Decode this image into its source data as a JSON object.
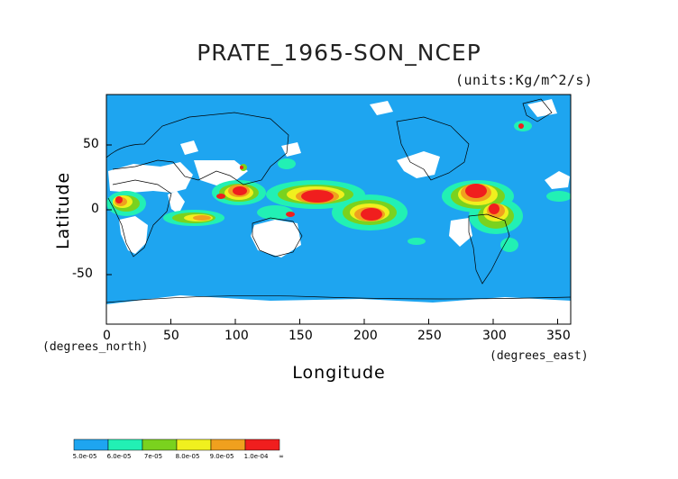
{
  "title": "PRATE_1965-SON_NCEP",
  "units": "(units:Kg/m^2/s)",
  "ylabel": "Latitude",
  "xlabel": "Longitude",
  "y_unit_note": "(degrees_north)",
  "x_unit_note": "(degrees_east)",
  "chart_data": {
    "type": "heatmap",
    "title": "PRATE_1965-SON_NCEP",
    "units": "(units:Kg/m^2/s)",
    "xlabel": "Longitude",
    "ylabel": "Latitude",
    "xlim": [
      0,
      360
    ],
    "ylim": [
      -90,
      90
    ],
    "x_ticks": [
      "0",
      "50",
      "100",
      "150",
      "200",
      "250",
      "300",
      "350"
    ],
    "y_ticks": [
      "50",
      "0",
      "-50"
    ],
    "background_color": "#1ea5f0",
    "colorbar": {
      "labels": [
        "5.0e-05",
        "6.0e-05",
        "7e-05",
        "8.0e-05",
        "9.0e-05",
        "1.0e-04",
        "∞"
      ],
      "colors": [
        "#1ea5f0",
        "#22f0b4",
        "#7ad21e",
        "#f0f01e",
        "#f0a01e",
        "#f01e1e"
      ]
    }
  }
}
